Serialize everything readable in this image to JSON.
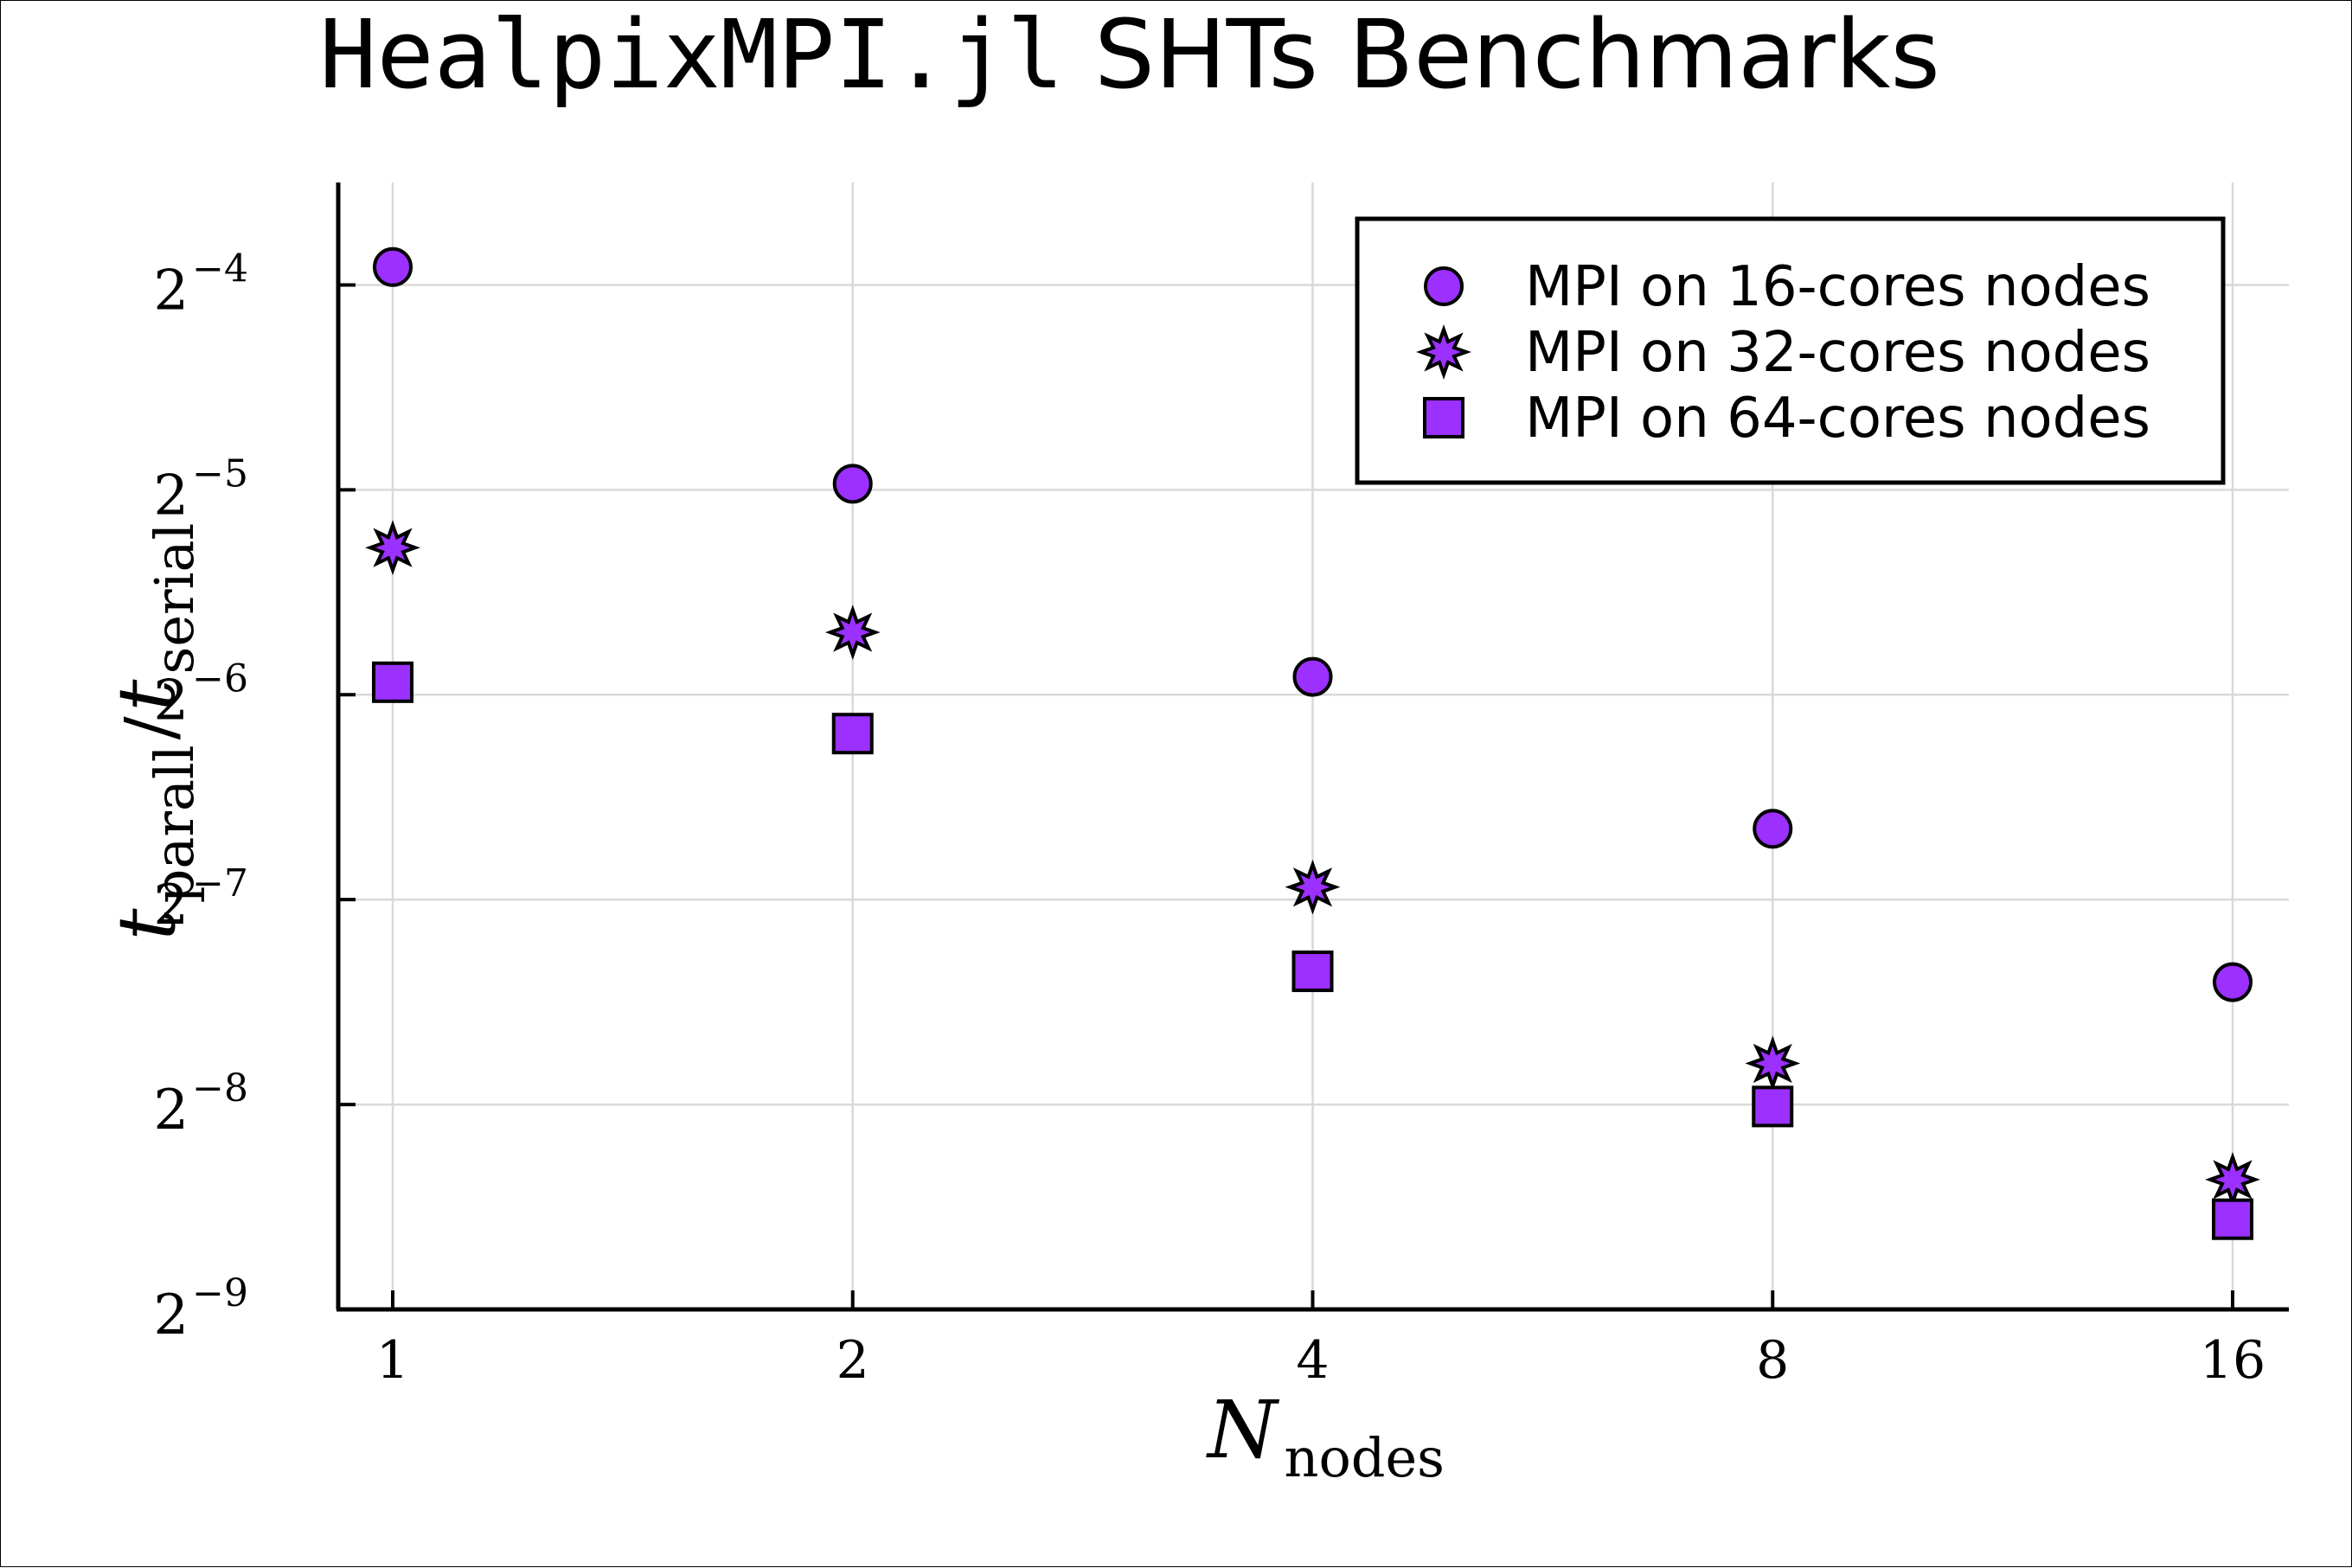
{
  "chart_data": {
    "type": "scatter",
    "title": {
      "code_part": "HealpixMPI.jl",
      "text_part": " SHTs Benchmarks"
    },
    "xlabel": {
      "main": "N",
      "subscript": "nodes"
    },
    "ylabel": {
      "numerator_main": "t",
      "numerator_subscript": "parall",
      "separator": "/",
      "denominator_main": "t",
      "denominator_subscript": "serial"
    },
    "x_scale": "log2",
    "y_scale": "log2",
    "x": [
      1,
      2,
      4,
      8,
      16
    ],
    "xticks": [
      "1",
      "2",
      "4",
      "8",
      "16"
    ],
    "yticks": [
      {
        "base": "2",
        "exp": "−4",
        "value": -4
      },
      {
        "base": "2",
        "exp": "−5",
        "value": -5
      },
      {
        "base": "2",
        "exp": "−6",
        "value": -6
      },
      {
        "base": "2",
        "exp": "−7",
        "value": -7
      },
      {
        "base": "2",
        "exp": "−8",
        "value": -8
      },
      {
        "base": "2",
        "exp": "−9",
        "value": -9
      }
    ],
    "ylim_log2": [
      -9,
      -3.5
    ],
    "grid": true,
    "legend_position": "top-right",
    "marker_color": "#9b30ff",
    "series": [
      {
        "name": "MPI on 16-cores nodes",
        "marker": "circle",
        "values": [
          0.0664,
          0.0319,
          0.0166,
          0.00993,
          0.00591
        ]
      },
      {
        "name": "MPI on 32-cores nodes",
        "marker": "star",
        "values": [
          0.0257,
          0.0193,
          0.00815,
          0.00449,
          0.00303
        ]
      },
      {
        "name": "MPI on 64-cores nodes",
        "marker": "square",
        "values": [
          0.0163,
          0.0137,
          0.00613,
          0.00388,
          0.00265
        ]
      }
    ]
  }
}
